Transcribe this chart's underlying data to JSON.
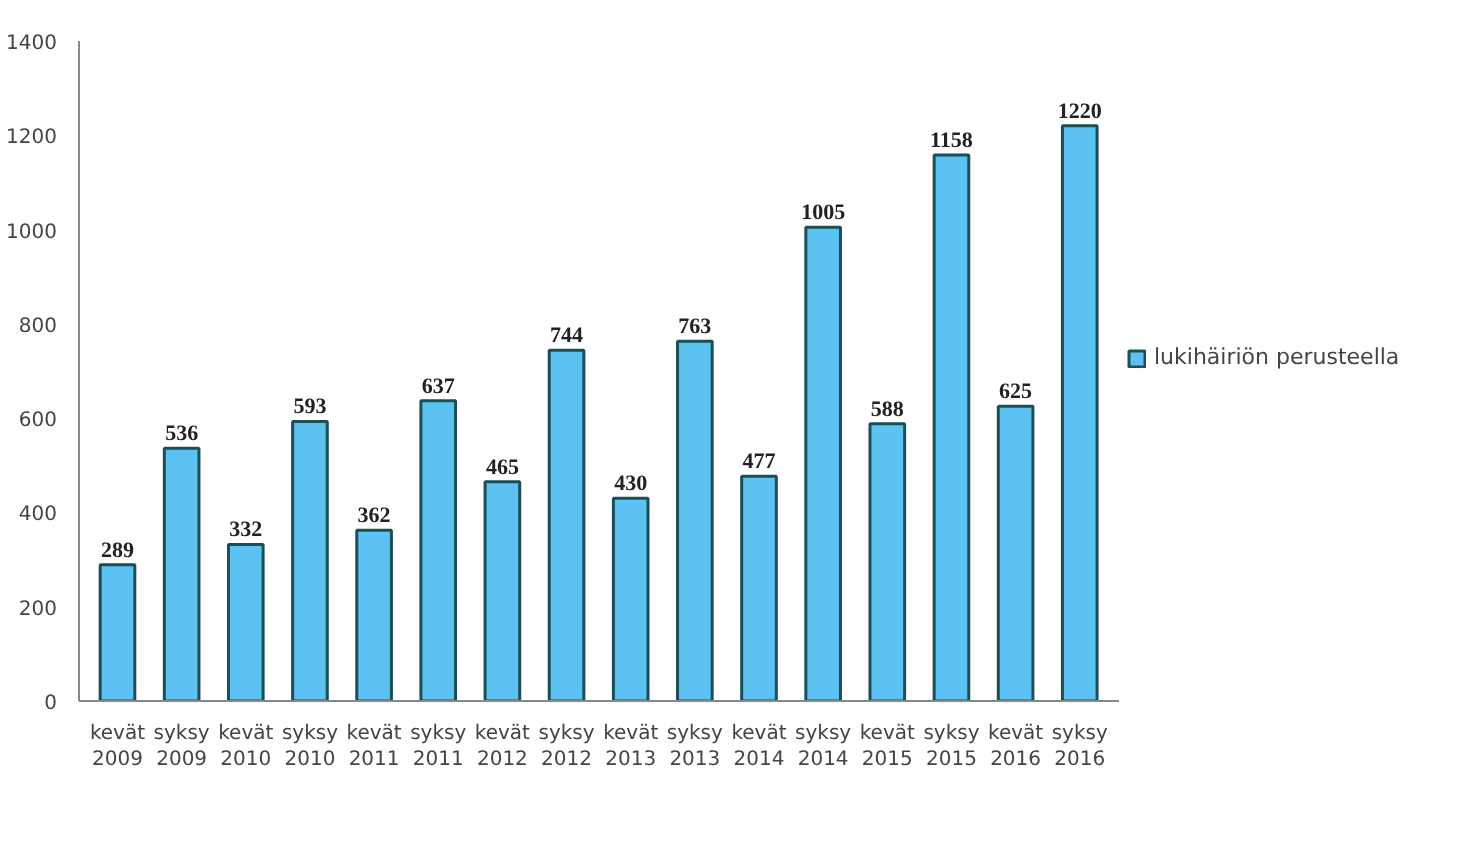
{
  "chart_data": {
    "type": "bar",
    "categories": [
      "kevät\n2009",
      "syksy\n2009",
      "kevät\n2010",
      "syksy\n2010",
      "kevät\n2011",
      "syksy\n2011",
      "kevät\n2012",
      "syksy\n2012",
      "kevät\n2013",
      "syksy\n2013",
      "kevät\n2014",
      "syksy\n2014",
      "kevät\n2015",
      "syksy\n2015",
      "kevät\n2016",
      "syksy\n2016"
    ],
    "series": [
      {
        "name": "lukihäiriön perusteella",
        "color": "#5bc2f2",
        "values": [
          289,
          536,
          332,
          593,
          362,
          637,
          465,
          744,
          430,
          763,
          477,
          1005,
          588,
          1158,
          625,
          1220
        ]
      }
    ],
    "ylim": [
      0,
      1400
    ],
    "yticks": [
      0,
      200,
      400,
      600,
      800,
      1000,
      1200,
      1400
    ],
    "data_labels": true,
    "legend": "right",
    "grid": false
  }
}
